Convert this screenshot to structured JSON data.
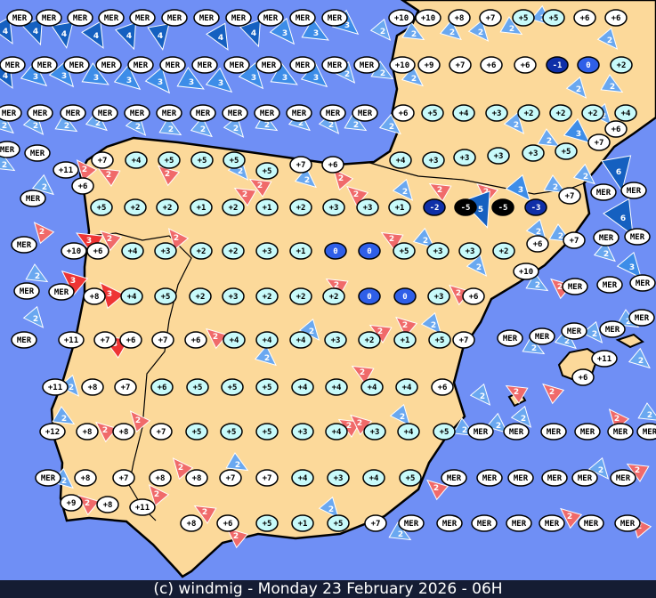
{
  "footer": "(c) windmig - Monday 23 February 2026 - 06H",
  "colors": {
    "sea": "#6f8ff5",
    "land": "#fcd99a",
    "border": "#000000",
    "marker_styles": {
      "w": "#ffffff",
      "c": "#c8fafa",
      "b": "#2f5fe8",
      "d": "#0f2fa8",
      "k": "#000000"
    },
    "wind_colors": {
      "r": "#f06a6a",
      "R": "#ee3434",
      "l": "#6aa8f0",
      "m": "#3d8de8",
      "D": "#1560c0"
    }
  },
  "temperature_rows": [
    {
      "labels": [
        "MER",
        "MER",
        "MER",
        "MER",
        "MER",
        "MER",
        "MER",
        "MER",
        "MER",
        "MER",
        "MER",
        "+10",
        "+10",
        "+8",
        "+7",
        "+5",
        "+5",
        "+6",
        "+6"
      ],
      "styles": "wwwwwwwwwwwwwwwccww"
    },
    {
      "labels": [
        "MER",
        "MER",
        "MER",
        "MER",
        "MER",
        "MER",
        "MER",
        "MER",
        "MER",
        "MER",
        "MER",
        "MER",
        "+10",
        "+9",
        "+7",
        "+6",
        "+6",
        "-1",
        "0",
        "+2"
      ],
      "styles": "wwwwwwwwwwwwwwwwwdbc"
    },
    {
      "labels": [
        "MER",
        "MER",
        "MER",
        "MER",
        "MER",
        "MER",
        "MER",
        "MER",
        "MER",
        "MER",
        "MER",
        "MER",
        "+6",
        "+5",
        "+4",
        "+3",
        "+2",
        "+2",
        "+2",
        "+4"
      ],
      "styles": "wwwwwwwwwwwwwccccccc"
    },
    {
      "labels": [
        "+6",
        "+7"
      ],
      "styles": "ww"
    },
    {
      "labels": [
        "MER",
        "MER",
        "+7",
        "+4",
        "+5",
        "+5",
        "+5",
        "+5",
        "+7",
        "+6",
        "+4",
        "+3",
        "+3",
        "+3",
        "+3",
        "+5"
      ],
      "styles": "wwwcccccwwcccccc"
    },
    {
      "labels": [
        "+11",
        "+6",
        "MER",
        "MER",
        "MER",
        "+7"
      ],
      "styles": "wwwwww"
    },
    {
      "labels": [
        "+5",
        "+2",
        "+2",
        "+1",
        "+2",
        "+1",
        "+2",
        "+3",
        "+3",
        "+1",
        "-2",
        "-5",
        "-5",
        "-3"
      ],
      "styles": "ccccccccccdkkd"
    },
    {
      "labels": [
        "+10",
        "+6",
        "+4",
        "+3",
        "+2",
        "+2",
        "+3",
        "+1",
        "0",
        "0",
        "+5",
        "+3",
        "+3",
        "+2"
      ],
      "styles": "wwccccccbbcccc"
    },
    {
      "labels": [
        "+6",
        "+7",
        "MER",
        "MER",
        "MER"
      ],
      "styles": "wwwww"
    },
    {
      "labels": [
        "+8",
        "+4",
        "+5",
        "+2",
        "+3",
        "+2",
        "+2",
        "+2",
        "0",
        "0",
        "+3",
        "+6"
      ],
      "styles": "wcccccccbbcw"
    },
    {
      "labels": [
        "MER",
        "MER",
        "+10",
        "MER",
        "MER",
        "MER"
      ],
      "styles": "wwwwww"
    },
    {
      "labels": [
        "MER",
        "+11",
        "+7",
        "+6",
        "+7",
        "+6",
        "+4",
        "+4",
        "+4",
        "+3",
        "+2",
        "+1",
        "+5",
        "+7"
      ],
      "styles": "wwwwwwcccccccw"
    },
    {
      "labels": [
        "MER",
        "MER",
        "MER",
        "MER",
        "MER"
      ],
      "styles": "wwwww"
    },
    {
      "labels": [
        "+11",
        "+8",
        "+7",
        "+6",
        "+5",
        "+5",
        "+5",
        "+4",
        "+4",
        "+4",
        "+4",
        "+6"
      ],
      "styles": "wwwccccccccw"
    },
    {
      "labels": [
        "+6",
        "+11"
      ],
      "styles": "ww"
    },
    {
      "labels": [
        "+12",
        "+8",
        "+8",
        "+7",
        "+5",
        "+5",
        "+5",
        "+3",
        "+4",
        "+3",
        "+4",
        "+5",
        "MER",
        "MER",
        "MER",
        "MER",
        "MER",
        "MER"
      ],
      "styles": "wwwwccccccccwwwwww"
    },
    {
      "labels": [
        "MER",
        "+8",
        "+7",
        "+8",
        "+8",
        "+7",
        "+7",
        "+4",
        "+3",
        "+4",
        "+5",
        "MER",
        "MER",
        "MER",
        "MER",
        "MER",
        "MER"
      ],
      "styles": "wwwwwwwccccwwwwww"
    },
    {
      "labels": [
        "+9",
        "+8",
        "+11"
      ],
      "styles": "www"
    },
    {
      "labels": [
        "+8",
        "+6",
        "+5",
        "+1",
        "+5",
        "+7",
        "MER",
        "MER",
        "MER",
        "MER",
        "MER",
        "MER",
        "MER"
      ],
      "styles": "wwcccwwwwwwww"
    }
  ],
  "wind_markers": "4D4D4D4D4D4D4D4D3m3m3m2l2l2l2l2l2l2l4D3m3m3m3m3m3m3m3m3m3m2l2l2l2l2l2l2l2l2l2l2l2l2l2l2l2l2l2l2l2l3m2l2l2l2r2r2r2l2r2l2r2r2r2l2r2r3m2l2l6D6D5D2r3R2r2r2r2l2l2l2l3m2l3R3R2r2r2l2l2r2l3R2r2l2r2r2l2l2l2l2l2l2l2r2l2l2r2r2r2l2r2r2r2r2l2l2l2l2l2l2r2l2r2l2r2r2r2r2r2l2l2r2r"
}
